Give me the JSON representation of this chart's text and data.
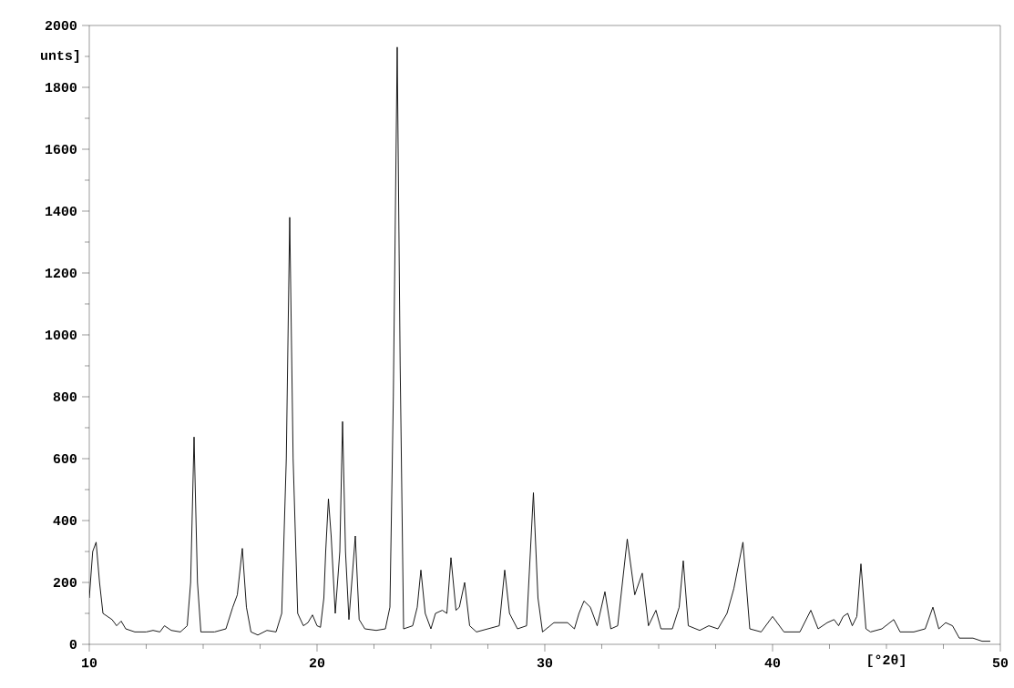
{
  "chart_data": {
    "type": "line",
    "xlabel": "[°2θ]",
    "ylabel": "unts]",
    "x": [
      10.0,
      10.15,
      10.3,
      10.45,
      10.6,
      11.0,
      11.2,
      11.4,
      11.6,
      12.0,
      12.5,
      12.8,
      13.1,
      13.3,
      13.6,
      14.0,
      14.3,
      14.45,
      14.6,
      14.75,
      14.9,
      15.5,
      16.0,
      16.3,
      16.5,
      16.72,
      16.9,
      17.1,
      17.4,
      17.8,
      18.2,
      18.45,
      18.65,
      18.8,
      18.95,
      19.15,
      19.4,
      19.6,
      19.8,
      20.0,
      20.15,
      20.3,
      20.38,
      20.5,
      20.62,
      20.8,
      21.0,
      21.12,
      21.25,
      21.4,
      21.68,
      21.85,
      22.1,
      22.6,
      23.0,
      23.2,
      23.35,
      23.52,
      23.65,
      23.8,
      24.2,
      24.4,
      24.56,
      24.75,
      25.0,
      25.2,
      25.5,
      25.7,
      25.88,
      26.1,
      26.25,
      26.48,
      26.7,
      27.0,
      27.5,
      28.0,
      28.24,
      28.45,
      28.8,
      29.2,
      29.5,
      29.7,
      29.9,
      30.4,
      31.0,
      31.3,
      31.5,
      31.72,
      32.0,
      32.3,
      32.64,
      32.9,
      33.2,
      33.62,
      33.95,
      34.28,
      34.55,
      34.88,
      35.1,
      35.6,
      35.9,
      36.08,
      36.3,
      36.8,
      37.2,
      37.6,
      38.0,
      38.3,
      38.7,
      39.0,
      39.5,
      40.0,
      40.5,
      41.2,
      41.68,
      42.0,
      42.4,
      42.7,
      42.9,
      43.1,
      43.3,
      43.5,
      43.7,
      43.88,
      44.1,
      44.3,
      44.8,
      45.32,
      45.6,
      46.2,
      46.7,
      47.04,
      47.3,
      47.6,
      47.9,
      48.2,
      48.8,
      49.2,
      49.56
    ],
    "values": [
      150,
      300,
      330,
      200,
      100,
      80,
      60,
      75,
      50,
      40,
      40,
      45,
      40,
      60,
      45,
      40,
      60,
      200,
      670,
      200,
      40,
      40,
      50,
      120,
      160,
      310,
      120,
      40,
      30,
      45,
      40,
      100,
      600,
      1380,
      600,
      100,
      60,
      70,
      95,
      60,
      55,
      150,
      300,
      470,
      350,
      100,
      300,
      720,
      300,
      80,
      350,
      80,
      50,
      45,
      50,
      120,
      800,
      1930,
      900,
      50,
      60,
      120,
      240,
      100,
      50,
      100,
      110,
      100,
      280,
      110,
      120,
      200,
      60,
      40,
      50,
      60,
      240,
      100,
      50,
      60,
      490,
      150,
      40,
      70,
      70,
      50,
      100,
      140,
      120,
      60,
      170,
      50,
      60,
      340,
      160,
      230,
      60,
      110,
      50,
      50,
      120,
      270,
      60,
      45,
      60,
      50,
      100,
      180,
      330,
      50,
      40,
      90,
      40,
      40,
      110,
      50,
      70,
      80,
      60,
      90,
      100,
      60,
      90,
      260,
      50,
      40,
      50,
      80,
      40,
      40,
      50,
      120,
      50,
      70,
      60,
      20,
      20,
      10,
      10
    ],
    "color": "#000000",
    "marker": "none",
    "line_style": "solid",
    "grid": false,
    "xlim": [
      10,
      50
    ],
    "ylim": [
      0,
      2000
    ],
    "xticks": [
      10,
      20,
      30,
      40,
      50
    ],
    "yticks": [
      0,
      200,
      400,
      600,
      800,
      1000,
      1200,
      1400,
      1600,
      1800,
      2000
    ]
  }
}
